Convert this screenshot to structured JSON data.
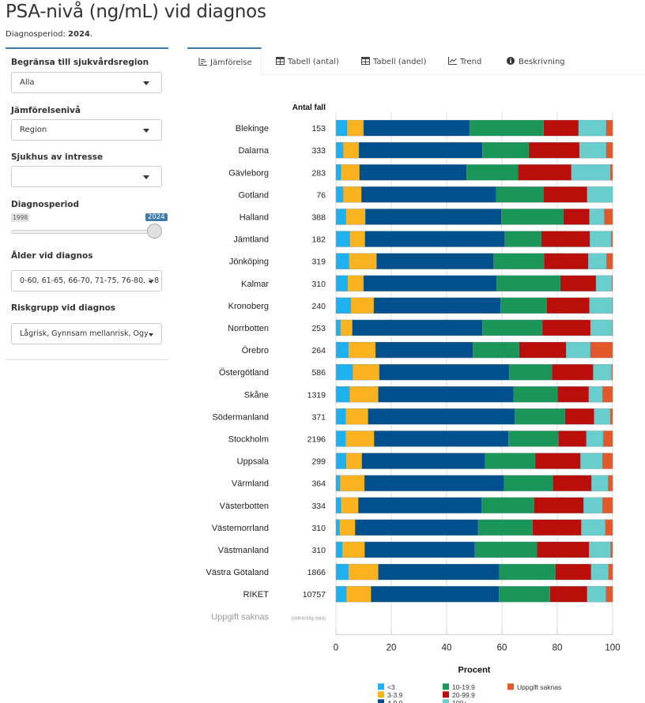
{
  "header": {
    "title": "PSA-nivå (ng/mL) vid diagnos",
    "subtitle_prefix": "Diagnosperiod: ",
    "subtitle_value": "2024",
    "subtitle_suffix": "."
  },
  "sidebar": {
    "region": {
      "label": "Begränsa till sjukvårdsregion",
      "value": "Alla"
    },
    "level": {
      "label": "Jämförelsenivå",
      "value": "Region"
    },
    "hospital": {
      "label": "Sjukhus av intresse",
      "value": ""
    },
    "period": {
      "label": "Diagnosperiod",
      "min": "1998",
      "max": "2024",
      "selected": "2024"
    },
    "age": {
      "label": "Ålder vid diagnos",
      "value": "0-60, 61-65, 66-70, 71-75, 76-80, >8"
    },
    "risk": {
      "label": "Riskgrupp vid diagnos",
      "value": "Lågrisk, Gynnsam mellanrisk, Ogy"
    }
  },
  "tabs": [
    {
      "label": "Jämförelse",
      "icon": "bar-chart-icon",
      "active": true
    },
    {
      "label": "Tabell (antal)",
      "icon": "table-icon",
      "active": false
    },
    {
      "label": "Tabell (andel)",
      "icon": "table-icon",
      "active": false
    },
    {
      "label": "Trend",
      "icon": "line-chart-icon",
      "active": false
    },
    {
      "label": "Beskrivning",
      "icon": "info-icon",
      "active": false
    }
  ],
  "chart_data": {
    "type": "bar",
    "orientation": "horizontal",
    "stacked": true,
    "count_header": "Antal fall",
    "xlabel": "Procent",
    "xlim": [
      0,
      100
    ],
    "xticks": [
      "0",
      "20",
      "40",
      "60",
      "80",
      "100"
    ],
    "grid": true,
    "legend_position": "bottom",
    "series": [
      {
        "name": "<3",
        "color": "#1fb0ef"
      },
      {
        "name": "3-3.9",
        "color": "#fbb21f"
      },
      {
        "name": "4-9.9",
        "color": "#00508e"
      },
      {
        "name": "10-19.9",
        "color": "#1b9659"
      },
      {
        "name": "20-99.9",
        "color": "#b90e0a"
      },
      {
        "name": "100+",
        "color": "#68cdcd"
      },
      {
        "name": "Uppgift saknas",
        "color": "#e3582a"
      }
    ],
    "categories": [
      {
        "name": "Blekinge",
        "n": "153",
        "values": [
          4.0,
          6.0,
          38.3,
          26.8,
          12.6,
          10.0,
          2.3
        ]
      },
      {
        "name": "Dalarna",
        "n": "333",
        "values": [
          2.6,
          5.7,
          44.6,
          16.8,
          18.3,
          9.7,
          2.3
        ]
      },
      {
        "name": "Gävleborg",
        "n": "283",
        "values": [
          1.8,
          6.7,
          38.7,
          18.6,
          19.3,
          14.1,
          0.8
        ]
      },
      {
        "name": "Gotland",
        "n": "76",
        "values": [
          2.6,
          6.6,
          48.7,
          17.1,
          15.8,
          9.2,
          0
        ]
      },
      {
        "name": "Halland",
        "n": "388",
        "values": [
          3.6,
          7.0,
          49.2,
          22.4,
          9.4,
          5.4,
          3.0
        ]
      },
      {
        "name": "Jämtland",
        "n": "182",
        "values": [
          5.0,
          5.5,
          50.5,
          13.2,
          17.6,
          7.7,
          0.5
        ]
      },
      {
        "name": "Jönköping",
        "n": "319",
        "values": [
          4.7,
          10.0,
          42.3,
          18.2,
          16.0,
          6.6,
          2.2
        ]
      },
      {
        "name": "Kalmar",
        "n": "310",
        "values": [
          4.2,
          5.8,
          48.1,
          23.0,
          12.9,
          5.8,
          0.2
        ]
      },
      {
        "name": "Kronoberg",
        "n": "240",
        "values": [
          5.4,
          8.3,
          45.8,
          16.7,
          15.4,
          8.3,
          0.1
        ]
      },
      {
        "name": "Norrbotten",
        "n": "253",
        "values": [
          1.6,
          4.3,
          47.0,
          21.7,
          17.4,
          7.9,
          0.1
        ]
      },
      {
        "name": "Örebro",
        "n": "264",
        "values": [
          4.5,
          9.8,
          35.2,
          16.7,
          17.0,
          8.7,
          8.1
        ]
      },
      {
        "name": "Östergötland",
        "n": "586",
        "values": [
          6.1,
          9.6,
          46.9,
          15.5,
          14.9,
          6.7,
          0.3
        ]
      },
      {
        "name": "Skåne",
        "n": "1319",
        "values": [
          4.9,
          10.4,
          48.9,
          15.9,
          11.3,
          5.0,
          3.6
        ]
      },
      {
        "name": "Södermanland",
        "n": "371",
        "values": [
          3.5,
          8.1,
          53.1,
          18.1,
          10.5,
          5.9,
          0.8
        ]
      },
      {
        "name": "Stockholm",
        "n": "2196",
        "values": [
          3.5,
          10.3,
          48.6,
          18.0,
          10.1,
          6.1,
          3.4
        ]
      },
      {
        "name": "Uppsala",
        "n": "299",
        "values": [
          3.7,
          5.7,
          44.5,
          18.1,
          16.4,
          8.0,
          3.6
        ]
      },
      {
        "name": "Värmland",
        "n": "364",
        "values": [
          1.5,
          8.8,
          50.5,
          17.6,
          14.0,
          6.0,
          1.6
        ]
      },
      {
        "name": "Västerbotten",
        "n": "334",
        "values": [
          1.8,
          6.3,
          44.6,
          18.9,
          17.9,
          6.9,
          3.6
        ]
      },
      {
        "name": "Västernorrland",
        "n": "310",
        "values": [
          1.3,
          5.6,
          44.5,
          19.7,
          17.6,
          8.7,
          2.6
        ]
      },
      {
        "name": "Västmanland",
        "n": "310",
        "values": [
          2.3,
          8.1,
          39.8,
          22.4,
          18.9,
          7.8,
          0.7
        ]
      },
      {
        "name": "Västra Götaland",
        "n": "1866",
        "values": [
          4.5,
          10.8,
          43.8,
          20.2,
          12.9,
          6.3,
          1.5
        ]
      },
      {
        "name": "RIKET",
        "n": "10757",
        "values": [
          3.8,
          8.9,
          46.2,
          18.5,
          13.4,
          6.8,
          2.4
        ]
      },
      {
        "name": "Uppgift saknas",
        "n": "(otillräcklig data)",
        "values": null
      }
    ]
  }
}
